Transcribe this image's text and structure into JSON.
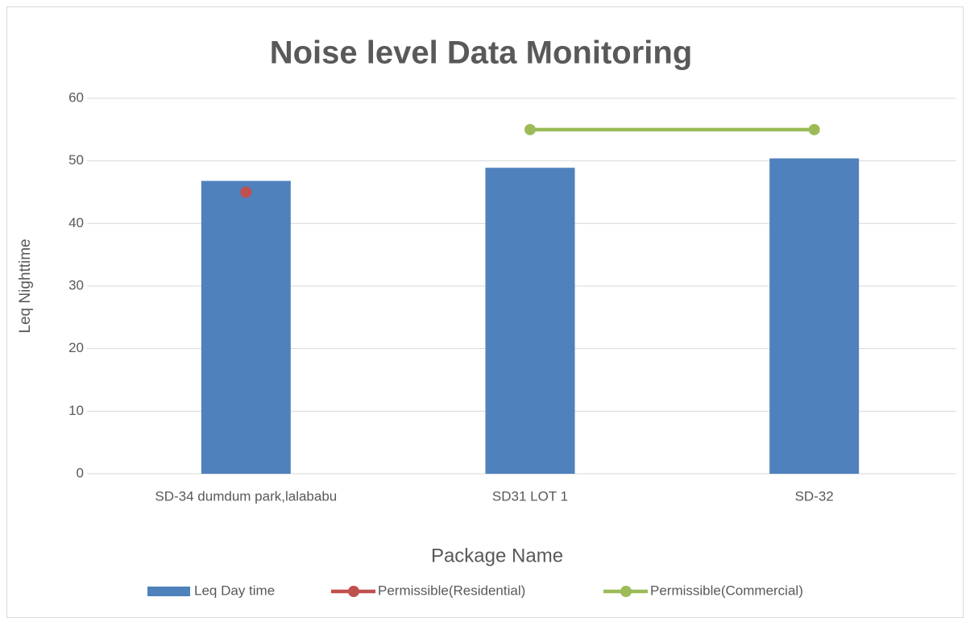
{
  "chart_data": {
    "type": "bar",
    "title": "Noise level Data Monitoring",
    "x_label": "Package Name",
    "y_label": "Leq Nighttime",
    "categories": [
      "SD-34 dumdum park,lalababu",
      "SD31 LOT 1",
      "SD-32"
    ],
    "series": [
      {
        "name": "Leq Day time",
        "type": "bar",
        "color": "#4f81bd",
        "values": [
          46.8,
          48.9,
          50.4
        ]
      },
      {
        "name": "Permissible(Residential)",
        "type": "line",
        "color": "#c0504d",
        "values": [
          45,
          null,
          null
        ]
      },
      {
        "name": "Permissible(Commercial)",
        "type": "line",
        "color": "#9bbb59",
        "values": [
          null,
          55,
          55
        ]
      }
    ],
    "ylim": [
      0,
      60
    ],
    "yticks": [
      0,
      10,
      20,
      30,
      40,
      50,
      60
    ],
    "grid": true,
    "legend": "bottom"
  }
}
